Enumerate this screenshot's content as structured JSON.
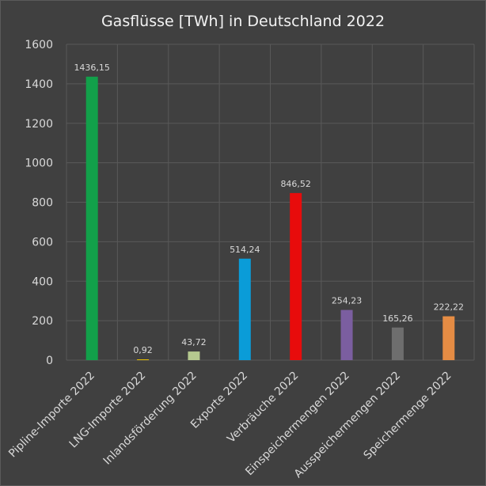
{
  "chart_data": {
    "type": "bar",
    "title": "Gasflüsse [TWh] in Deutschland 2022",
    "xlabel": "",
    "ylabel": "",
    "ylim": [
      0,
      1600
    ],
    "yticks": [
      0,
      200,
      400,
      600,
      800,
      1000,
      1200,
      1400,
      1600
    ],
    "grid": true,
    "legend": "none",
    "categories": [
      "Pipline-Importe 2022",
      "LNG-Importe 2022",
      "Inlandsförderung 2022",
      "Exporte 2022",
      "Verbräuche 2022",
      "Einspeichermengen 2022",
      "Ausspeichermengen 2022",
      "Speichermenge 2022"
    ],
    "values": [
      1436.15,
      0.92,
      43.72,
      514.24,
      846.52,
      254.23,
      165.26,
      222.22
    ],
    "data_labels": [
      "1436,15",
      "0,92",
      "43,72",
      "514,24",
      "846,52",
      "254,23",
      "165,26",
      "222,22"
    ],
    "colors": [
      "#12a04a",
      "#e8c000",
      "#b5c98f",
      "#0a9cd8",
      "#e80c0c",
      "#7b5ea0",
      "#6e6e6e",
      "#e58c44"
    ],
    "background": "#404040",
    "text_color": "#d9d9d9"
  }
}
